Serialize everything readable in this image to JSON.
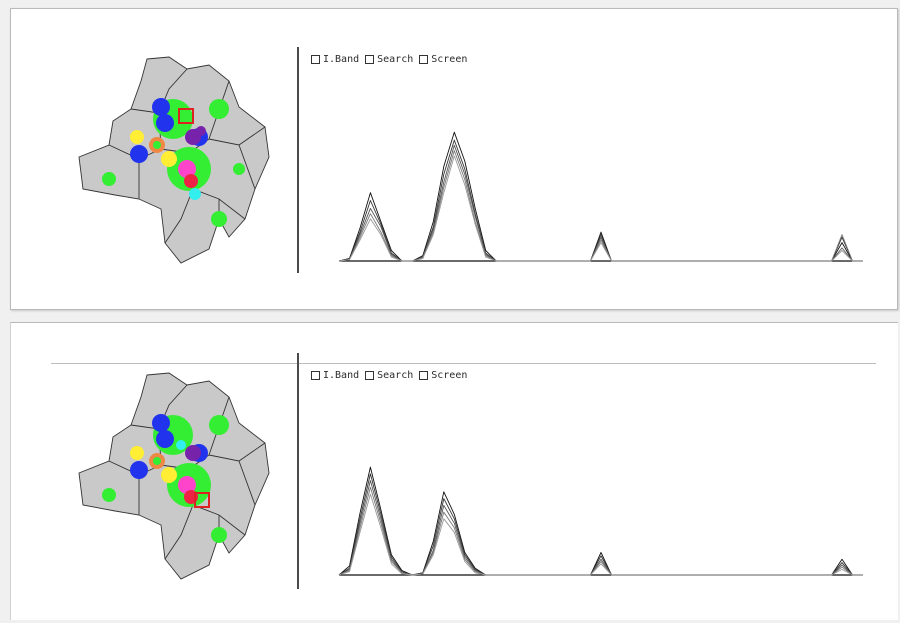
{
  "filters": {
    "band": "I.Band",
    "search": "Search",
    "screen": "Screen"
  },
  "colors": {
    "baseline": "#111111",
    "axis_divider": "#4a4a4a",
    "map_outline": "#333333",
    "region_gray": "#c9c9c9",
    "green": "#33ee33",
    "blue": "#2233ee",
    "yellow": "#ffee33",
    "magenta": "#ff44cc",
    "red": "#ee2244",
    "purple": "#7722aa",
    "cyan": "#33eeee",
    "selection_red": "#dd2222"
  },
  "panels": [
    {
      "selection": "top-center",
      "chart_data": {
        "type": "line",
        "x": [
          0,
          1,
          2,
          3,
          4,
          5,
          6,
          7,
          8,
          9,
          10,
          11,
          12,
          13,
          14,
          15,
          16,
          17,
          18,
          19,
          20,
          21,
          22,
          23,
          24,
          25,
          26,
          27,
          28,
          29,
          30,
          31,
          32,
          33,
          34,
          35,
          36,
          37,
          38,
          39,
          40,
          41,
          42,
          43,
          44,
          45,
          46,
          47,
          48,
          49,
          50
        ],
        "series": [
          {
            "values": [
              0,
              2,
              25,
              52,
              30,
              8,
              0,
              0,
              4,
              30,
              72,
              98,
              76,
              40,
              8,
              0,
              0,
              0,
              0,
              0,
              0,
              0,
              0,
              0,
              0,
              22,
              0,
              0,
              0,
              0,
              0,
              0,
              0,
              0,
              0,
              0,
              0,
              0,
              0,
              0,
              0,
              0,
              0,
              0,
              0,
              0,
              0,
              0,
              14,
              0,
              0
            ]
          },
          {
            "values": [
              0,
              2,
              22,
              46,
              28,
              6,
              0,
              0,
              3,
              26,
              66,
              92,
              70,
              36,
              6,
              0,
              0,
              0,
              0,
              0,
              0,
              0,
              0,
              0,
              0,
              20,
              0,
              0,
              0,
              0,
              0,
              0,
              0,
              0,
              0,
              0,
              0,
              0,
              0,
              0,
              0,
              0,
              0,
              0,
              0,
              0,
              0,
              0,
              18,
              0,
              0
            ]
          },
          {
            "values": [
              0,
              1,
              20,
              40,
              26,
              5,
              0,
              0,
              3,
              24,
              60,
              88,
              66,
              34,
              5,
              0,
              0,
              0,
              0,
              0,
              0,
              0,
              0,
              0,
              0,
              18,
              0,
              0,
              0,
              0,
              0,
              0,
              0,
              0,
              0,
              0,
              0,
              0,
              0,
              0,
              0,
              0,
              0,
              0,
              0,
              0,
              0,
              0,
              10,
              0,
              0
            ]
          },
          {
            "values": [
              0,
              1,
              18,
              36,
              22,
              4,
              0,
              0,
              2,
              22,
              56,
              84,
              62,
              30,
              4,
              0,
              0,
              0,
              0,
              0,
              0,
              0,
              0,
              0,
              0,
              16,
              0,
              0,
              0,
              0,
              0,
              0,
              0,
              0,
              0,
              0,
              0,
              0,
              0,
              0,
              0,
              0,
              0,
              0,
              0,
              0,
              0,
              0,
              20,
              0,
              0
            ]
          },
          {
            "values": [
              0,
              1,
              16,
              32,
              20,
              3,
              0,
              0,
              2,
              20,
              52,
              80,
              58,
              28,
              3,
              0,
              0,
              0,
              0,
              0,
              0,
              0,
              0,
              0,
              0,
              14,
              0,
              0,
              0,
              0,
              0,
              0,
              0,
              0,
              0,
              0,
              0,
              0,
              0,
              0,
              0,
              0,
              0,
              0,
              0,
              0,
              0,
              0,
              8,
              0,
              0
            ]
          }
        ],
        "ylim": [
          0,
          105
        ]
      }
    },
    {
      "selection": "center-right",
      "chart_data": {
        "type": "line",
        "x": [
          0,
          1,
          2,
          3,
          4,
          5,
          6,
          7,
          8,
          9,
          10,
          11,
          12,
          13,
          14,
          15,
          16,
          17,
          18,
          19,
          20,
          21,
          22,
          23,
          24,
          25,
          26,
          27,
          28,
          29,
          30,
          31,
          32,
          33,
          34,
          35,
          36,
          37,
          38,
          39,
          40,
          41,
          42,
          43,
          44,
          45,
          46,
          47,
          48,
          49,
          50
        ],
        "series": [
          {
            "values": [
              0,
              8,
              55,
              96,
              58,
              18,
              4,
              0,
              2,
              30,
              74,
              54,
              20,
              6,
              0,
              0,
              0,
              0,
              0,
              0,
              0,
              0,
              0,
              0,
              0,
              20,
              0,
              0,
              0,
              0,
              0,
              0,
              0,
              0,
              0,
              0,
              0,
              0,
              0,
              0,
              0,
              0,
              0,
              0,
              0,
              0,
              0,
              0,
              14,
              0,
              0
            ]
          },
          {
            "values": [
              0,
              6,
              50,
              90,
              54,
              16,
              3,
              0,
              2,
              26,
              68,
              50,
              18,
              5,
              0,
              0,
              0,
              0,
              0,
              0,
              0,
              0,
              0,
              0,
              0,
              17,
              0,
              0,
              0,
              0,
              0,
              0,
              0,
              0,
              0,
              0,
              0,
              0,
              0,
              0,
              0,
              0,
              0,
              0,
              0,
              0,
              0,
              0,
              11,
              0,
              0
            ]
          },
          {
            "values": [
              0,
              5,
              46,
              84,
              50,
              14,
              2,
              0,
              1,
              22,
              62,
              46,
              16,
              4,
              0,
              0,
              0,
              0,
              0,
              0,
              0,
              0,
              0,
              0,
              0,
              14,
              0,
              0,
              0,
              0,
              0,
              0,
              0,
              0,
              0,
              0,
              0,
              0,
              0,
              0,
              0,
              0,
              0,
              0,
              0,
              0,
              0,
              0,
              9,
              0,
              0
            ]
          },
          {
            "values": [
              0,
              4,
              42,
              78,
              46,
              12,
              2,
              0,
              1,
              20,
              56,
              42,
              14,
              3,
              0,
              0,
              0,
              0,
              0,
              0,
              0,
              0,
              0,
              0,
              0,
              12,
              0,
              0,
              0,
              0,
              0,
              0,
              0,
              0,
              0,
              0,
              0,
              0,
              0,
              0,
              0,
              0,
              0,
              0,
              0,
              0,
              0,
              0,
              7,
              0,
              0
            ]
          },
          {
            "values": [
              0,
              3,
              38,
              72,
              42,
              10,
              1,
              0,
              1,
              18,
              50,
              38,
              12,
              2,
              0,
              0,
              0,
              0,
              0,
              0,
              0,
              0,
              0,
              0,
              0,
              10,
              0,
              0,
              0,
              0,
              0,
              0,
              0,
              0,
              0,
              0,
              0,
              0,
              0,
              0,
              0,
              0,
              0,
              0,
              0,
              0,
              0,
              0,
              5,
              0,
              0
            ]
          }
        ],
        "ylim": [
          0,
          105
        ]
      }
    }
  ]
}
